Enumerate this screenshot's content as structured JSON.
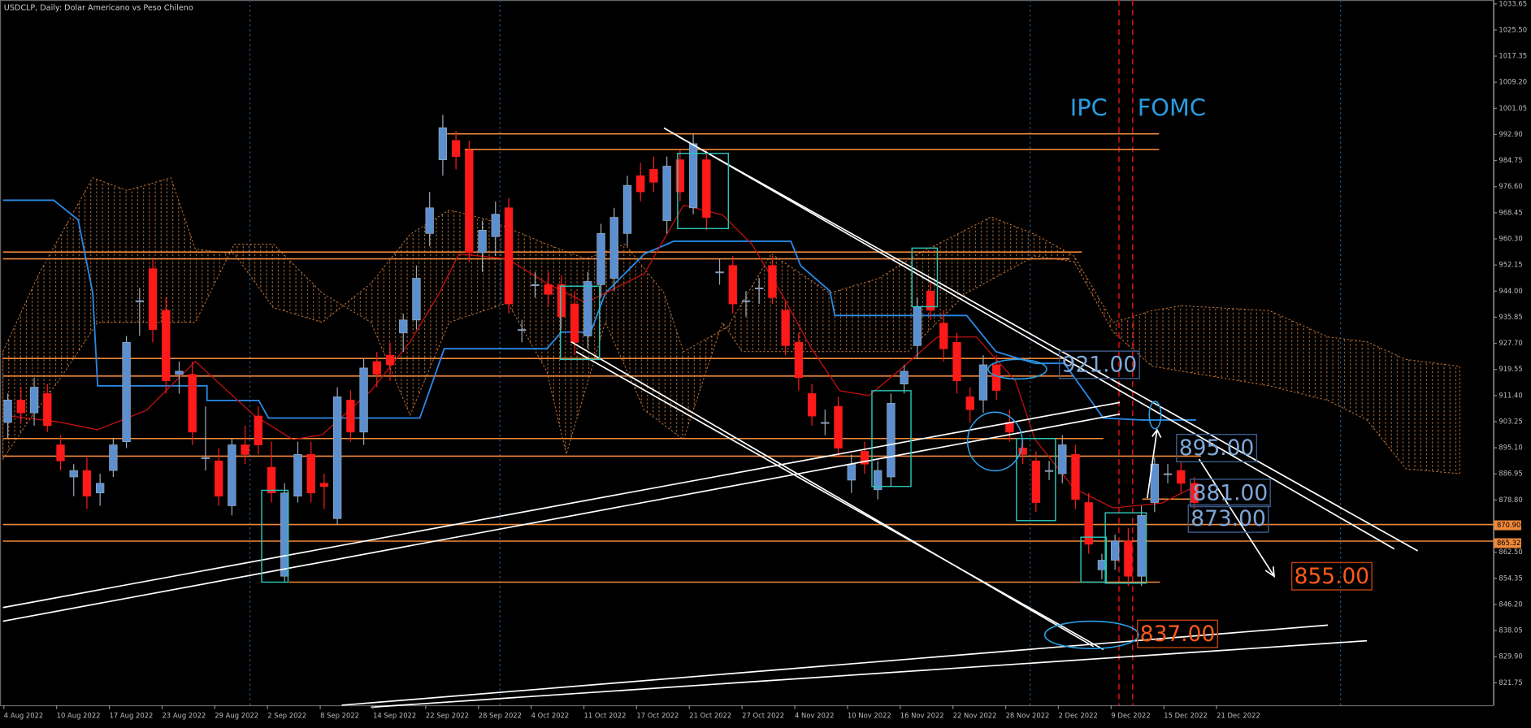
{
  "chart_data": {
    "type": "candlestick",
    "title": "USDCLP, Daily:  Dolar Americano vs Peso Chileno",
    "dates": [
      "4 Aug 2022",
      "10 Aug 2022",
      "17 Aug 2022",
      "23 Aug 2022",
      "29 Aug 2022",
      "2 Sep 2022",
      "8 Sep 2022",
      "14 Sep 2022",
      "22 Sep 2022",
      "28 Sep 2022",
      "4 Oct 2022",
      "11 Oct 2022",
      "17 Oct 2022",
      "21 Oct 2022",
      "27 Oct 2022",
      "4 Nov 2022",
      "10 Nov 2022",
      "16 Nov 2022",
      "22 Nov 2022",
      "28 Nov 2022",
      "2 Dec 2022",
      "9 Dec 2022",
      "15 Dec 2022",
      "21 Dec 2022"
    ],
    "candles": [
      [
        903,
        912,
        898,
        910
      ],
      [
        910,
        914,
        903,
        906
      ],
      [
        906,
        917,
        902,
        914
      ],
      [
        912,
        915,
        900,
        902
      ],
      [
        896,
        899,
        888,
        891
      ],
      [
        886,
        890,
        880,
        888
      ],
      [
        888,
        892,
        876,
        880
      ],
      [
        881,
        887,
        877,
        884
      ],
      [
        888,
        898,
        886,
        896
      ],
      [
        897,
        930,
        895,
        928
      ],
      [
        941,
        945,
        930,
        941
      ],
      [
        951,
        954,
        928,
        932
      ],
      [
        938,
        942,
        912,
        916
      ],
      [
        918,
        922,
        912,
        919
      ],
      [
        918,
        922,
        896,
        900
      ],
      [
        892,
        908,
        888,
        892
      ],
      [
        891,
        895,
        877,
        880
      ],
      [
        877,
        898,
        874,
        896
      ],
      [
        896,
        902,
        890,
        893
      ],
      [
        905,
        908,
        893,
        896
      ],
      [
        889,
        897,
        878,
        881
      ],
      [
        855,
        884,
        853,
        881
      ],
      [
        880,
        897,
        878,
        893
      ],
      [
        893,
        897,
        878,
        881
      ],
      [
        884,
        887,
        876,
        883
      ],
      [
        873,
        914,
        871,
        911
      ],
      [
        910,
        913,
        897,
        900
      ],
      [
        900,
        923,
        896,
        920
      ],
      [
        922,
        925,
        914,
        918
      ],
      [
        924,
        928,
        916,
        921
      ],
      [
        931,
        937,
        925,
        935
      ],
      [
        935,
        952,
        932,
        948
      ],
      [
        962,
        975,
        958,
        970
      ],
      [
        985,
        999,
        980,
        995
      ],
      [
        991,
        994,
        982,
        986
      ],
      [
        988,
        991,
        953,
        956
      ],
      [
        956,
        966,
        950,
        963
      ],
      [
        961,
        972,
        955,
        968
      ],
      [
        970,
        973,
        937,
        940
      ],
      [
        932,
        935,
        928,
        932
      ],
      [
        946,
        950,
        942,
        946
      ],
      [
        946,
        950,
        939,
        943
      ],
      [
        946,
        949,
        932,
        936
      ],
      [
        940,
        944,
        924,
        928
      ],
      [
        930,
        950,
        926,
        947
      ],
      [
        946,
        965,
        942,
        962
      ],
      [
        948,
        970,
        944,
        967
      ],
      [
        962,
        980,
        958,
        977
      ],
      [
        980,
        984,
        972,
        975
      ],
      [
        982,
        986,
        975,
        978
      ],
      [
        966,
        986,
        962,
        983
      ],
      [
        985,
        988,
        972,
        975
      ],
      [
        970,
        993,
        968,
        990
      ],
      [
        985,
        988,
        963,
        967
      ],
      [
        950,
        954,
        946,
        950
      ],
      [
        952,
        955,
        937,
        940
      ],
      [
        941,
        944,
        936,
        941
      ],
      [
        945,
        948,
        940,
        945
      ],
      [
        952,
        955,
        940,
        942
      ],
      [
        938,
        941,
        924,
        927
      ],
      [
        928,
        931,
        913,
        917
      ],
      [
        912,
        915,
        902,
        905
      ],
      [
        903,
        907,
        899,
        903
      ],
      [
        908,
        911,
        892,
        895
      ],
      [
        885,
        893,
        881,
        890
      ],
      [
        894,
        897,
        887,
        890
      ],
      [
        882,
        891,
        879,
        888
      ],
      [
        886,
        912,
        883,
        909
      ],
      [
        915,
        921,
        912,
        919
      ],
      [
        927,
        942,
        923,
        939
      ],
      [
        944,
        947,
        935,
        938
      ],
      [
        934,
        938,
        922,
        926
      ],
      [
        928,
        931,
        912,
        916
      ],
      [
        911,
        914,
        903,
        907
      ],
      [
        910,
        924,
        906,
        921
      ],
      [
        921,
        924,
        910,
        913
      ],
      [
        903,
        907,
        897,
        900
      ],
      [
        895,
        898,
        890,
        893
      ],
      [
        891,
        894,
        875,
        878
      ],
      [
        888,
        891,
        885,
        888
      ],
      [
        887,
        899,
        884,
        896
      ],
      [
        893,
        896,
        876,
        879
      ],
      [
        878,
        881,
        862,
        865
      ],
      [
        857,
        862,
        854,
        860
      ],
      [
        860,
        868,
        857,
        866
      ],
      [
        866,
        870,
        852,
        855
      ],
      [
        855,
        877,
        852,
        874
      ],
      [
        878,
        892,
        875,
        890
      ],
      [
        887,
        890,
        884,
        887
      ],
      [
        888,
        891,
        881,
        884
      ],
      [
        884,
        886,
        876,
        878
      ]
    ],
    "up_color": "#5b8fd0",
    "down_color": "#ff1a1a",
    "ylim": [
      821.75,
      1033.65
    ],
    "yticks": [
      821.75,
      {
        "value": 829.9,
        "label": "829.90"
      },
      838.05,
      {
        "value": 846.2,
        "label": "846.20"
      },
      854.35,
      {
        "value": 862.5,
        "label": "862.50"
      },
      {
        "value": 878.8,
        "label": "878.80"
      },
      886.95,
      {
        "value": 895.1,
        "label": "895.10"
      },
      903.25,
      {
        "value": 911.4,
        "label": "911.40"
      },
      919.55,
      {
        "value": 927.7,
        "label": "927.70"
      },
      935.85,
      {
        "value": 944,
        "label": "944.00"
      },
      952.15,
      {
        "value": 960.3,
        "label": "960.30"
      },
      968.45,
      {
        "value": 976.6,
        "label": "976.60"
      },
      984.75,
      {
        "value": 992.9,
        "label": "992.90"
      },
      1001.05,
      {
        "value": 1009.2,
        "label": "1009.20"
      },
      1017.35,
      {
        "value": 1025.5,
        "label": "1025.50"
      },
      1033.65
    ],
    "annotations": [
      "IPC",
      "FOMC"
    ],
    "price_labels": [
      {
        "value": 921,
        "label": "921.00",
        "color": "#7fa7d8"
      },
      {
        "value": 895,
        "label": "895.00",
        "color": "#7fa7d8"
      },
      {
        "value": 881,
        "label": "881.00",
        "color": "#7fa7d8"
      },
      {
        "value": 873,
        "label": "873.00",
        "color": "#7fa7d8"
      },
      {
        "value": 855,
        "label": "855.00",
        "color": "#ff5a1a"
      },
      {
        "value": 837,
        "label": "837.00",
        "color": "#ff5a1a"
      }
    ],
    "axis_markers": [
      {
        "value": 870.9,
        "label": "870.90"
      },
      {
        "value": 865.32,
        "label": "865.32"
      }
    ]
  }
}
